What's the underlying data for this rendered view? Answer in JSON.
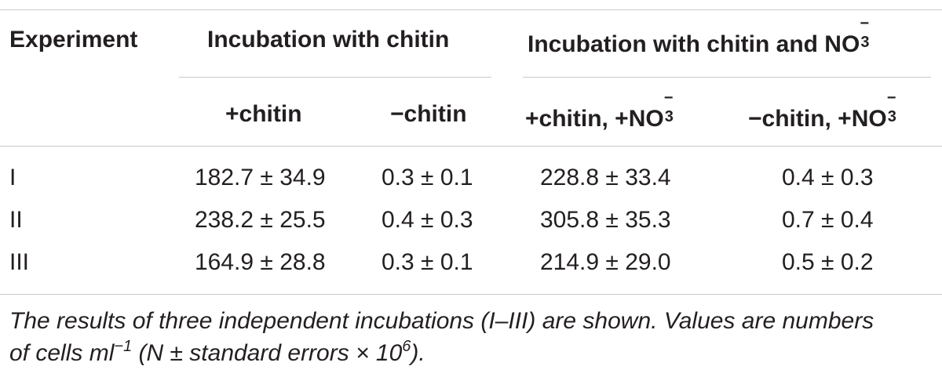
{
  "table": {
    "header": {
      "experiment": "Experiment",
      "group_chitin": "Incubation with chitin",
      "group_chitin_no3": "Incubation with chitin and NO",
      "ion_sub": "3",
      "ion_sup": "−"
    },
    "subheader": {
      "plus_chitin": "+chitin",
      "minus_chitin": "−chitin",
      "plus_chitin_plus_no3": "+chitin, +NO",
      "minus_chitin_plus_no3": "−chitin, +NO"
    },
    "rows": [
      {
        "experiment": "I",
        "plus_chitin": "182.7 ± 34.9",
        "minus_chitin": "0.3 ± 0.1",
        "plus_chitin_plus_no3": "228.8 ± 33.4",
        "minus_chitin_plus_no3": "0.4 ± 0.3"
      },
      {
        "experiment": "II",
        "plus_chitin": "238.2 ± 25.5",
        "minus_chitin": "0.4 ± 0.3",
        "plus_chitin_plus_no3": "305.8 ± 35.3",
        "minus_chitin_plus_no3": "0.7 ± 0.4"
      },
      {
        "experiment": "III",
        "plus_chitin": "164.9 ± 28.8",
        "minus_chitin": "0.3 ± 0.1",
        "plus_chitin_plus_no3": "214.9 ± 29.0",
        "minus_chitin_plus_no3": "0.5 ± 0.2"
      }
    ]
  },
  "footnote": {
    "line1": "The results of three independent incubations (I–III) are shown. Values are numbers",
    "line2_a": "of cells ml",
    "line2_exp": "−1",
    "line2_b": " (N ± standard errors × 10",
    "line2_exp2": "6",
    "line2_c": ")."
  }
}
